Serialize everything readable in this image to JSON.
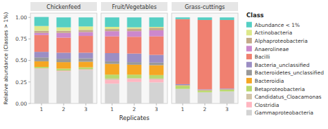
{
  "chart_data": [
    {
      "type": "bar",
      "title": "Chickenfeed",
      "stacked": true,
      "grid": false,
      "legend": "right",
      "legend_title": "Class",
      "ylabel": "Relative abundance (Classes > 1%)",
      "categories": [
        "1",
        "2",
        "3"
      ],
      "ylim": [
        0,
        1.05
      ],
      "yticks": [
        {
          "value": 0,
          "label": "0.00"
        },
        {
          "value": 0.25,
          "label": "0.25"
        },
        {
          "value": 0.5,
          "label": "0.50"
        },
        {
          "value": 0.75,
          "label": "0.75"
        },
        {
          "value": 1,
          "label": "1.00"
        }
      ],
      "series": [
        {
          "name": "Gammaproteobacteria",
          "color": "#d3d3d3",
          "values": [
            0.4,
            0.37,
            0.385
          ]
        },
        {
          "name": "Clostridia",
          "color": "#ffb6c1",
          "values": [
            0.005,
            0.005,
            0.005
          ]
        },
        {
          "name": "Candidatus_Cloacamonas",
          "color": "#d2c4a8",
          "values": [
            0.005,
            0.01,
            0.01
          ]
        },
        {
          "name": "Betaproteobacteria",
          "color": "#b8d96e",
          "values": [
            0.015,
            0.02,
            0.02
          ]
        },
        {
          "name": "Bacteroidia",
          "color": "#f5a623",
          "values": [
            0.065,
            0.075,
            0.065
          ]
        },
        {
          "name": "Bacteroidetes_unclassified",
          "color": "#999999",
          "values": [
            0.045,
            0.04,
            0.04
          ]
        },
        {
          "name": "Bacteria_unclassified",
          "color": "#9b8ec4",
          "values": [
            0.065,
            0.07,
            0.065
          ]
        },
        {
          "name": "Bacilli",
          "color": "#f08070",
          "values": [
            0.195,
            0.175,
            0.195
          ]
        },
        {
          "name": "Anaerolineae",
          "color": "#cc88cc",
          "values": [
            0.025,
            0.055,
            0.045
          ]
        },
        {
          "name": "Alphaproteobacteria",
          "color": "#c4aa88",
          "values": [
            0.025,
            0.025,
            0.025
          ]
        },
        {
          "name": "Actinobacteria",
          "color": "#dde88a",
          "values": [
            0.055,
            0.04,
            0.04
          ]
        },
        {
          "name": "Abundance < 1%",
          "color": "#55cfc4",
          "values": [
            0.105,
            0.115,
            0.105
          ]
        }
      ]
    },
    {
      "type": "bar",
      "title": "Fruit/Vegetables",
      "stacked": true,
      "grid": false,
      "tick_labels": "x",
      "xlabel": "Replicates",
      "categories": [
        "1",
        "2",
        "3"
      ],
      "ylim": [
        0,
        1.05
      ],
      "series": [
        {
          "name": "Gammaproteobacteria",
          "color": "#d3d3d3",
          "values": [
            0.23,
            0.25,
            0.245
          ]
        },
        {
          "name": "Clostridia",
          "color": "#ffb6c1",
          "values": [
            0.045,
            0.035,
            0.035
          ]
        },
        {
          "name": "Candidatus_Cloacamonas",
          "color": "#d2c4a8",
          "values": [
            0.015,
            0.01,
            0.01
          ]
        },
        {
          "name": "Betaproteobacteria",
          "color": "#b8d96e",
          "values": [
            0.045,
            0.04,
            0.04
          ]
        },
        {
          "name": "Bacteroidia",
          "color": "#f5a623",
          "values": [
            0.125,
            0.115,
            0.115
          ]
        },
        {
          "name": "Bacteroidetes_unclassified",
          "color": "#999999",
          "values": [
            0.03,
            0.03,
            0.03
          ]
        },
        {
          "name": "Bacteria_unclassified",
          "color": "#9b8ec4",
          "values": [
            0.095,
            0.1,
            0.09
          ]
        },
        {
          "name": "Bacilli",
          "color": "#f08070",
          "values": [
            0.195,
            0.195,
            0.215
          ]
        },
        {
          "name": "Anaerolineae",
          "color": "#cc88cc",
          "values": [
            0.06,
            0.065,
            0.07
          ]
        },
        {
          "name": "Alphaproteobacteria",
          "color": "#c4aa88",
          "values": [
            0.025,
            0.03,
            0.03
          ]
        },
        {
          "name": "Actinobacteria",
          "color": "#dde88a",
          "values": [
            0.025,
            0.015,
            0.01
          ]
        },
        {
          "name": "Abundance < 1%",
          "color": "#55cfc4",
          "values": [
            0.11,
            0.115,
            0.11
          ]
        }
      ]
    },
    {
      "type": "bar",
      "title": "Grass-cuttings",
      "stacked": true,
      "grid": false,
      "tick_labels": "x",
      "categories": [
        "1",
        "2",
        "3"
      ],
      "ylim": [
        0,
        1.05
      ],
      "series": [
        {
          "name": "Gammaproteobacteria",
          "color": "#d3d3d3",
          "values": [
            0.17,
            0.13,
            0.14
          ]
        },
        {
          "name": "Clostridia",
          "color": "#ffb6c1",
          "values": [
            0.0,
            0.0,
            0.0
          ]
        },
        {
          "name": "Candidatus_Cloacamonas",
          "color": "#d2c4a8",
          "values": [
            0.0,
            0.0,
            0.0
          ]
        },
        {
          "name": "Betaproteobacteria",
          "color": "#b8d96e",
          "values": [
            0.035,
            0.02,
            0.02
          ]
        },
        {
          "name": "Bacteroidia",
          "color": "#f5a623",
          "values": [
            0.005,
            0.003,
            0.003
          ]
        },
        {
          "name": "Bacteroidetes_unclassified",
          "color": "#999999",
          "values": [
            0.005,
            0.003,
            0.003
          ]
        },
        {
          "name": "Bacteria_unclassified",
          "color": "#9b8ec4",
          "values": [
            0.01,
            0.008,
            0.008
          ]
        },
        {
          "name": "Bacilli",
          "color": "#f08070",
          "values": [
            0.755,
            0.806,
            0.796
          ]
        },
        {
          "name": "Anaerolineae",
          "color": "#cc88cc",
          "values": [
            0.0,
            0.0,
            0.0
          ]
        },
        {
          "name": "Alphaproteobacteria",
          "color": "#c4aa88",
          "values": [
            0.0,
            0.0,
            0.0
          ]
        },
        {
          "name": "Actinobacteria",
          "color": "#dde88a",
          "values": [
            0.0,
            0.0,
            0.0
          ]
        },
        {
          "name": "Abundance < 1%",
          "color": "#55cfc4",
          "values": [
            0.02,
            0.03,
            0.03
          ]
        }
      ]
    }
  ]
}
